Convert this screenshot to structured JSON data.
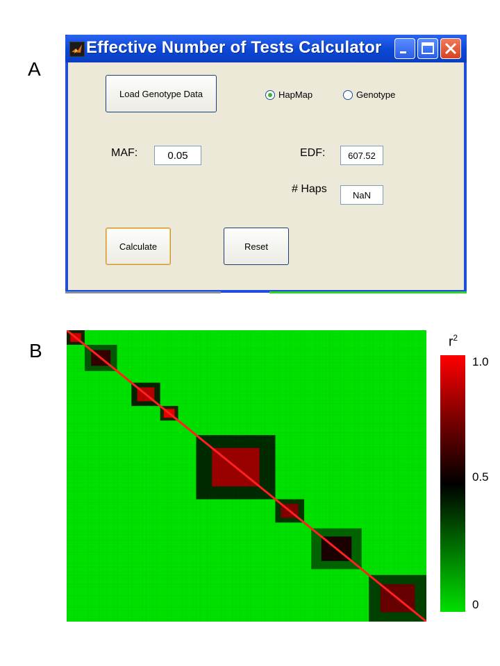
{
  "panel_a_label": "A",
  "panel_b_label": "B",
  "window": {
    "title": "Effective Number of Tests Calculator",
    "load_button": "Load Genotype Data",
    "radio": [
      {
        "label": "HapMap",
        "checked": true
      },
      {
        "label": "Genotype",
        "checked": false
      }
    ],
    "maf_label": "MAF:",
    "maf_value": "0.05",
    "edf_label": "EDF:",
    "edf_value": "607.52",
    "haps_label": "# Haps",
    "haps_value": "NaN",
    "calculate_button": "Calculate",
    "reset_button": "Reset"
  },
  "colorbar": {
    "title_base": "r",
    "title_sup": "2",
    "ticks": [
      "1.0",
      "0.5",
      "0"
    ],
    "colors": {
      "high": "#ff0000",
      "mid": "#000000",
      "low": "#00e000"
    }
  },
  "chart_data": {
    "type": "heatmap",
    "title": "",
    "xlabel": "",
    "ylabel": "",
    "colorbar_label": "r2",
    "value_range": [
      0,
      1.0
    ],
    "blocks": [
      {
        "start": 0.0,
        "end": 0.05,
        "value": 0.9
      },
      {
        "start": 0.05,
        "end": 0.14,
        "value": 0.6
      },
      {
        "start": 0.18,
        "end": 0.26,
        "value": 0.85
      },
      {
        "start": 0.26,
        "end": 0.31,
        "value": 0.95
      },
      {
        "start": 0.36,
        "end": 0.58,
        "value": 0.8
      },
      {
        "start": 0.58,
        "end": 0.66,
        "value": 0.75
      },
      {
        "start": 0.68,
        "end": 0.82,
        "value": 0.55
      },
      {
        "start": 0.84,
        "end": 1.0,
        "value": 0.7
      }
    ]
  }
}
